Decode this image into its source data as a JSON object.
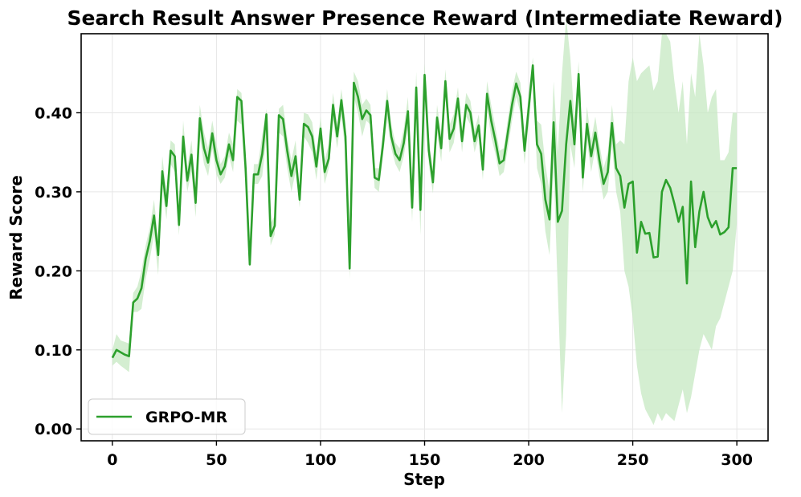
{
  "chart_data": {
    "type": "line",
    "title": "Search Result Answer Presence Reward (Intermediate Reward)",
    "xlabel": "Step",
    "ylabel": "Reward Score",
    "xlim": [
      -15,
      315
    ],
    "ylim": [
      -0.015,
      0.5
    ],
    "xticks": [
      0,
      50,
      100,
      150,
      200,
      250,
      300
    ],
    "yticks": [
      0.0,
      0.1,
      0.2,
      0.3,
      0.4
    ],
    "xtick_labels": [
      "0",
      "50",
      "100",
      "150",
      "200",
      "250",
      "300"
    ],
    "ytick_labels": [
      "0.00",
      "0.10",
      "0.20",
      "0.30",
      "0.40"
    ],
    "grid": true,
    "legend": {
      "position": "lower-left",
      "entries": [
        "GRPO-MR"
      ]
    },
    "colors": {
      "line": "#2ca02c",
      "band": "#c5e8c2"
    },
    "series": [
      {
        "name": "GRPO-MR",
        "x": [
          0,
          2,
          4,
          6,
          8,
          10,
          12,
          14,
          16,
          18,
          20,
          22,
          24,
          26,
          28,
          30,
          32,
          34,
          36,
          38,
          40,
          42,
          44,
          46,
          48,
          50,
          52,
          54,
          56,
          58,
          60,
          62,
          64,
          66,
          68,
          70,
          72,
          74,
          76,
          78,
          80,
          82,
          84,
          86,
          88,
          90,
          92,
          94,
          96,
          98,
          100,
          102,
          104,
          106,
          108,
          110,
          112,
          114,
          116,
          118,
          120,
          122,
          124,
          126,
          128,
          130,
          132,
          134,
          136,
          138,
          140,
          142,
          144,
          146,
          148,
          150,
          152,
          154,
          156,
          158,
          160,
          162,
          164,
          166,
          168,
          170,
          172,
          174,
          176,
          178,
          180,
          182,
          184,
          186,
          188,
          190,
          192,
          194,
          196,
          198,
          200,
          202,
          204,
          206,
          208,
          210,
          212,
          214,
          216,
          218,
          220,
          222,
          224,
          226,
          228,
          230,
          232,
          234,
          236,
          238,
          240,
          242,
          244,
          246,
          248,
          250,
          252,
          254,
          256,
          258,
          260,
          262,
          264,
          266,
          268,
          270,
          272,
          274,
          276,
          278,
          280,
          282,
          284,
          286,
          288,
          290,
          292,
          294,
          296,
          298,
          300
        ],
        "values": [
          0.09,
          0.1,
          0.097,
          0.094,
          0.092,
          0.16,
          0.165,
          0.178,
          0.215,
          0.238,
          0.27,
          0.22,
          0.326,
          0.282,
          0.352,
          0.345,
          0.258,
          0.37,
          0.314,
          0.347,
          0.286,
          0.393,
          0.355,
          0.337,
          0.374,
          0.34,
          0.322,
          0.332,
          0.36,
          0.34,
          0.42,
          0.415,
          0.33,
          0.208,
          0.322,
          0.322,
          0.348,
          0.398,
          0.244,
          0.257,
          0.397,
          0.392,
          0.352,
          0.32,
          0.345,
          0.29,
          0.386,
          0.382,
          0.37,
          0.332,
          0.38,
          0.325,
          0.342,
          0.41,
          0.37,
          0.416,
          0.37,
          0.203,
          0.438,
          0.42,
          0.392,
          0.403,
          0.397,
          0.318,
          0.315,
          0.36,
          0.415,
          0.37,
          0.348,
          0.34,
          0.362,
          0.402,
          0.28,
          0.432,
          0.277,
          0.448,
          0.352,
          0.312,
          0.394,
          0.355,
          0.44,
          0.367,
          0.38,
          0.418,
          0.364,
          0.41,
          0.4,
          0.364,
          0.384,
          0.328,
          0.424,
          0.39,
          0.365,
          0.336,
          0.34,
          0.375,
          0.41,
          0.437,
          0.42,
          0.352,
          0.405,
          0.46,
          0.36,
          0.348,
          0.29,
          0.265,
          0.388,
          0.262,
          0.276,
          0.36,
          0.415,
          0.36,
          0.449,
          0.318,
          0.386,
          0.345,
          0.375,
          0.34,
          0.31,
          0.325,
          0.387,
          0.33,
          0.32,
          0.28,
          0.31,
          0.313,
          0.223,
          0.262,
          0.247,
          0.248,
          0.217,
          0.218,
          0.3,
          0.315,
          0.305,
          0.285,
          0.262,
          0.281,
          0.184,
          0.313,
          0.23,
          0.275,
          0.3,
          0.268,
          0.255,
          0.263,
          0.246,
          0.249,
          0.255,
          0.33,
          0.33
        ],
        "lower": [
          0.08,
          0.085,
          0.08,
          0.076,
          0.072,
          0.148,
          0.148,
          0.152,
          0.19,
          0.215,
          0.246,
          0.195,
          0.305,
          0.265,
          0.335,
          0.325,
          0.245,
          0.35,
          0.3,
          0.325,
          0.268,
          0.37,
          0.335,
          0.32,
          0.355,
          0.322,
          0.31,
          0.318,
          0.345,
          0.325,
          0.39,
          0.385,
          0.305,
          0.204,
          0.31,
          0.31,
          0.32,
          0.37,
          0.232,
          0.246,
          0.375,
          0.37,
          0.33,
          0.3,
          0.325,
          0.28,
          0.37,
          0.362,
          0.35,
          0.315,
          0.36,
          0.31,
          0.33,
          0.39,
          0.355,
          0.395,
          0.35,
          0.19,
          0.42,
          0.4,
          0.37,
          0.39,
          0.385,
          0.305,
          0.3,
          0.345,
          0.392,
          0.355,
          0.335,
          0.325,
          0.345,
          0.38,
          0.262,
          0.41,
          0.245,
          0.43,
          0.335,
          0.298,
          0.375,
          0.338,
          0.42,
          0.35,
          0.362,
          0.4,
          0.35,
          0.395,
          0.385,
          0.35,
          0.37,
          0.315,
          0.405,
          0.37,
          0.348,
          0.32,
          0.325,
          0.355,
          0.39,
          0.42,
          0.4,
          0.335,
          0.385,
          0.445,
          0.33,
          0.31,
          0.25,
          0.22,
          0.33,
          0.175,
          0.02,
          0.12,
          0.36,
          0.33,
          0.43,
          0.3,
          0.365,
          0.325,
          0.355,
          0.32,
          0.29,
          0.3,
          0.36,
          0.3,
          0.275,
          0.2,
          0.18,
          0.14,
          0.08,
          0.045,
          0.025,
          0.015,
          0.005,
          0.02,
          0.01,
          0.02,
          0.015,
          0.01,
          0.03,
          0.05,
          0.02,
          0.04,
          0.07,
          0.1,
          0.12,
          0.11,
          0.1,
          0.13,
          0.14,
          0.16,
          0.18,
          0.2,
          0.26
        ],
        "upper": [
          0.1,
          0.12,
          0.112,
          0.11,
          0.108,
          0.172,
          0.18,
          0.2,
          0.232,
          0.255,
          0.29,
          0.24,
          0.345,
          0.3,
          0.365,
          0.36,
          0.275,
          0.39,
          0.33,
          0.365,
          0.305,
          0.41,
          0.375,
          0.355,
          0.39,
          0.36,
          0.335,
          0.345,
          0.375,
          0.36,
          0.43,
          0.425,
          0.35,
          0.212,
          0.335,
          0.335,
          0.372,
          0.405,
          0.26,
          0.27,
          0.405,
          0.41,
          0.37,
          0.34,
          0.365,
          0.3,
          0.4,
          0.398,
          0.388,
          0.348,
          0.395,
          0.34,
          0.36,
          0.425,
          0.385,
          0.43,
          0.39,
          0.215,
          0.452,
          0.44,
          0.41,
          0.418,
          0.41,
          0.33,
          0.33,
          0.375,
          0.43,
          0.385,
          0.362,
          0.355,
          0.38,
          0.42,
          0.298,
          0.452,
          0.292,
          0.462,
          0.37,
          0.326,
          0.41,
          0.372,
          0.455,
          0.385,
          0.398,
          0.432,
          0.378,
          0.425,
          0.415,
          0.378,
          0.398,
          0.342,
          0.44,
          0.41,
          0.382,
          0.352,
          0.355,
          0.392,
          0.428,
          0.452,
          0.438,
          0.37,
          0.425,
          0.47,
          0.39,
          0.385,
          0.335,
          0.3,
          0.44,
          0.35,
          0.45,
          0.52,
          0.47,
          0.39,
          0.465,
          0.336,
          0.408,
          0.365,
          0.395,
          0.36,
          0.33,
          0.35,
          0.41,
          0.36,
          0.365,
          0.36,
          0.44,
          0.47,
          0.44,
          0.45,
          0.455,
          0.46,
          0.428,
          0.44,
          0.5,
          0.5,
          0.49,
          0.44,
          0.4,
          0.44,
          0.36,
          0.45,
          0.42,
          0.5,
          0.46,
          0.4,
          0.42,
          0.43,
          0.34,
          0.34,
          0.35,
          0.4,
          0.4
        ]
      }
    ]
  }
}
